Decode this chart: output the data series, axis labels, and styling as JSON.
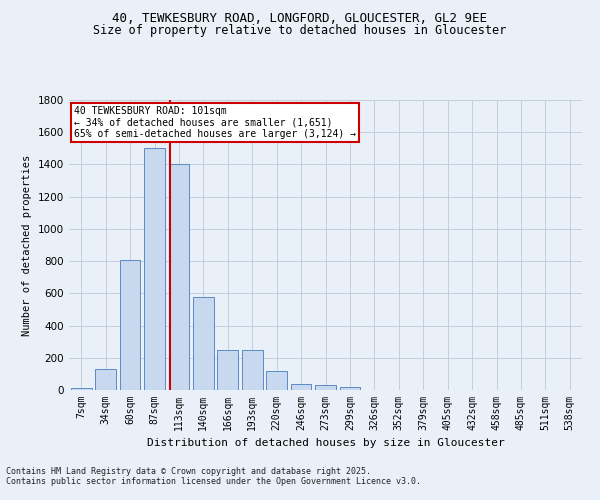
{
  "title_line1": "40, TEWKESBURY ROAD, LONGFORD, GLOUCESTER, GL2 9EE",
  "title_line2": "Size of property relative to detached houses in Gloucester",
  "xlabel": "Distribution of detached houses by size in Gloucester",
  "ylabel": "Number of detached properties",
  "footer1": "Contains HM Land Registry data © Crown copyright and database right 2025.",
  "footer2": "Contains public sector information licensed under the Open Government Licence v3.0.",
  "annotation_title": "40 TEWKESBURY ROAD: 101sqm",
  "annotation_line2": "← 34% of detached houses are smaller (1,651)",
  "annotation_line3": "65% of semi-detached houses are larger (3,124) →",
  "bar_labels": [
    "7sqm",
    "34sqm",
    "60sqm",
    "87sqm",
    "113sqm",
    "140sqm",
    "166sqm",
    "193sqm",
    "220sqm",
    "246sqm",
    "273sqm",
    "299sqm",
    "326sqm",
    "352sqm",
    "379sqm",
    "405sqm",
    "432sqm",
    "458sqm",
    "485sqm",
    "511sqm",
    "538sqm"
  ],
  "bar_values": [
    10,
    130,
    810,
    1500,
    1400,
    580,
    250,
    250,
    120,
    35,
    30,
    20,
    0,
    0,
    0,
    0,
    0,
    0,
    0,
    0,
    0
  ],
  "bar_color": "#c8d9ef",
  "bar_edge_color": "#5a8ac6",
  "grid_color": "#c0c8d8",
  "background_color": "#eaf0f8",
  "red_line_x": 3.62,
  "ylim": [
    0,
    1800
  ],
  "yticks": [
    0,
    200,
    400,
    600,
    800,
    1000,
    1200,
    1400,
    1600,
    1800
  ],
  "annotation_box_color": "#ffffff",
  "annotation_box_edge": "#cc0000",
  "red_line_color": "#cc0000",
  "title_fontsize": 9,
  "subtitle_fontsize": 8.5,
  "ylabel_fontsize": 7.5,
  "xlabel_fontsize": 8,
  "tick_fontsize": 7,
  "ytick_fontsize": 7.5,
  "footer_fontsize": 6,
  "annot_fontsize": 7
}
